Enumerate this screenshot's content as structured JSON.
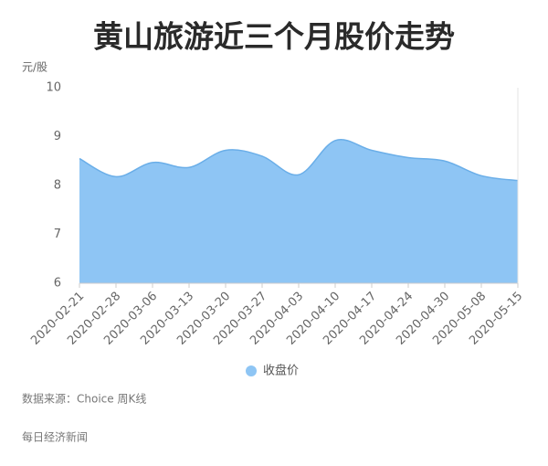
{
  "chart_data": {
    "type": "area",
    "title": "黄山旅游近三个月股价走势",
    "ylabel": "元/股",
    "categories": [
      "2020-02-21",
      "2020-02-28",
      "2020-03-06",
      "2020-03-13",
      "2020-03-20",
      "2020-03-27",
      "2020-04-03",
      "2020-04-10",
      "2020-04-17",
      "2020-04-24",
      "2020-04-30",
      "2020-05-08",
      "2020-05-15"
    ],
    "series": [
      {
        "name": "收盘价",
        "color": "#8ec5f4",
        "values": [
          8.55,
          8.18,
          8.47,
          8.37,
          8.72,
          8.6,
          8.22,
          8.92,
          8.72,
          8.57,
          8.5,
          8.2,
          8.1
        ]
      }
    ],
    "ylim": [
      6,
      10
    ],
    "yticks": [
      6,
      7,
      8,
      9,
      10
    ],
    "grid": false,
    "source": "数据来源：Choice 周K线",
    "publisher": "每日经济新闻"
  }
}
